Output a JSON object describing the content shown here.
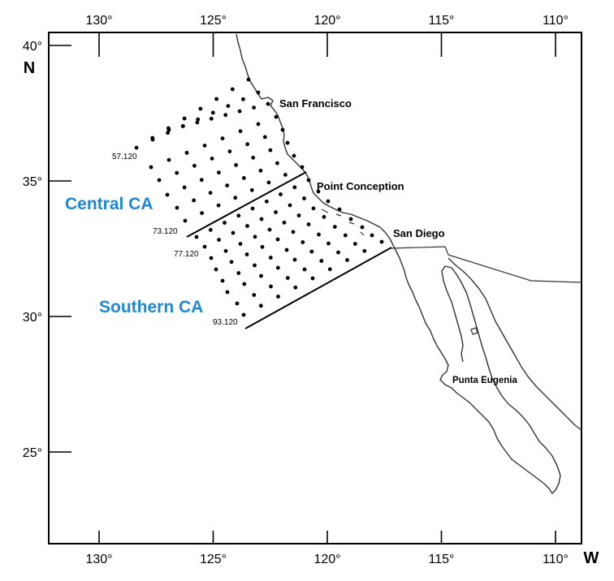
{
  "axes": {
    "longitude_ticks": [
      {
        "value": -130,
        "label": "130°"
      },
      {
        "value": -125,
        "label": "125°"
      },
      {
        "value": -120,
        "label": "120°"
      },
      {
        "value": -115,
        "label": "115°"
      },
      {
        "value": -110,
        "label": "110°"
      }
    ],
    "latitude_ticks": [
      {
        "value": 40,
        "label": "40°"
      },
      {
        "value": 35,
        "label": "35°"
      },
      {
        "value": 30,
        "label": "30°"
      },
      {
        "value": 25,
        "label": "25°"
      }
    ],
    "north_label": "N",
    "west_label": "W"
  },
  "places": [
    {
      "label": "San Francisco",
      "lon": -122.4,
      "lat": 37.8
    },
    {
      "label": "Point Conception",
      "lon": -120.5,
      "lat": 34.5
    },
    {
      "label": "San Diego",
      "lon": -117.2,
      "lat": 32.7
    },
    {
      "label": "Punta Eugenia",
      "lon": -115.0,
      "lat": 27.8
    }
  ],
  "regions": [
    {
      "label": "Central CA",
      "color": "#1e88d8"
    },
    {
      "label": "Southern CA",
      "color": "#1e88d8"
    }
  ],
  "station_labels": [
    {
      "label": "57.120"
    },
    {
      "label": "73.120"
    },
    {
      "label": "77.120"
    },
    {
      "label": "93.120"
    }
  ],
  "colors": {
    "frame": "#000000",
    "coast": "#333333",
    "coast_accent": "#2e8b72",
    "stations": "#000000",
    "divider_lines": "#000000"
  }
}
